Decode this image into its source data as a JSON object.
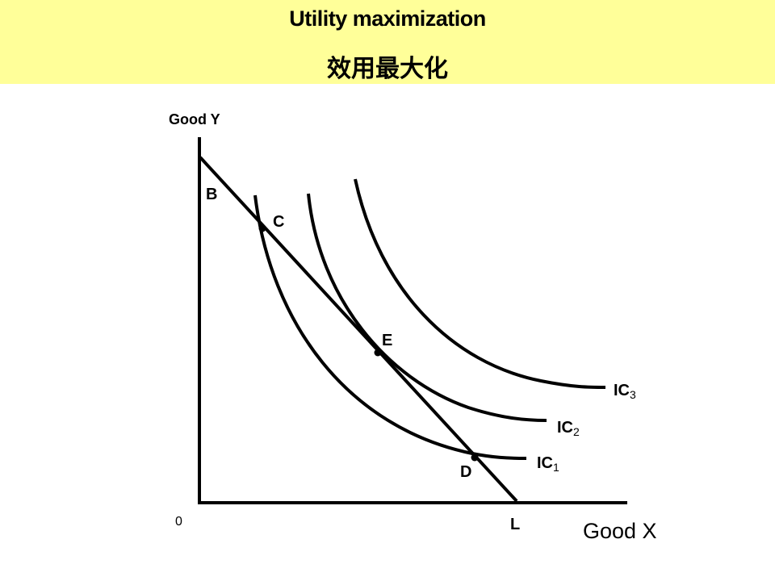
{
  "title": {
    "english": "Utility maximization",
    "chinese": "效用最大化"
  },
  "axes": {
    "y_label": "Good Y",
    "x_label": "Good X",
    "origin_label": "0"
  },
  "budget_line": {
    "y_intercept_label": "B",
    "x_intercept_label": "L"
  },
  "points": {
    "c": "C",
    "e": "E",
    "d": "D"
  },
  "curves": {
    "ic1": {
      "base": "IC",
      "sub": "1"
    },
    "ic2": {
      "base": "IC",
      "sub": "2"
    },
    "ic3": {
      "base": "IC",
      "sub": "3"
    }
  },
  "colors": {
    "banner": "#ffff99",
    "lines": "#000000"
  }
}
